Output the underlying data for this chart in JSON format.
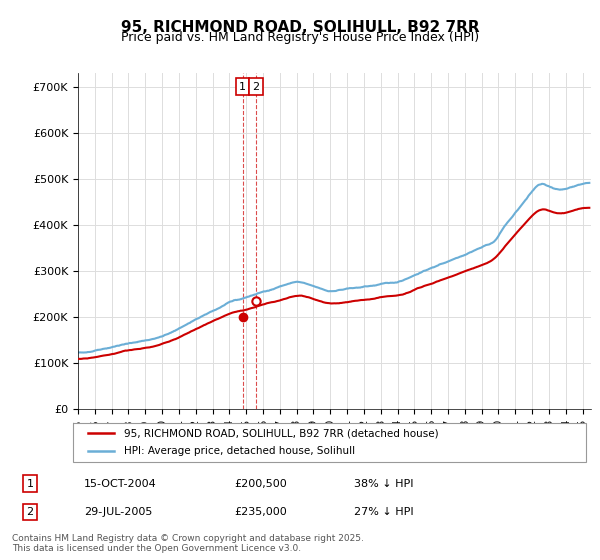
{
  "title": "95, RICHMOND ROAD, SOLIHULL, B92 7RR",
  "subtitle": "Price paid vs. HM Land Registry's House Price Index (HPI)",
  "ylabel_ticks": [
    "£0",
    "£100K",
    "£200K",
    "£300K",
    "£400K",
    "£500K",
    "£600K",
    "£700K"
  ],
  "ytick_values": [
    0,
    100000,
    200000,
    300000,
    400000,
    500000,
    600000,
    700000
  ],
  "ylim": [
    0,
    730000
  ],
  "xlim_start": 1995.0,
  "xlim_end": 2025.5,
  "xtick_years": [
    1995,
    1996,
    1997,
    1998,
    1999,
    2000,
    2001,
    2002,
    2003,
    2004,
    2005,
    2006,
    2007,
    2008,
    2009,
    2010,
    2011,
    2012,
    2013,
    2014,
    2015,
    2016,
    2017,
    2018,
    2019,
    2020,
    2021,
    2022,
    2023,
    2024,
    2025
  ],
  "legend_label_red": "95, RICHMOND ROAD, SOLIHULL, B92 7RR (detached house)",
  "legend_label_blue": "HPI: Average price, detached house, Solihull",
  "red_color": "#cc0000",
  "blue_color": "#6baed6",
  "annotation1_box": "1",
  "annotation1_date": "15-OCT-2004",
  "annotation1_price": "£200,500",
  "annotation1_hpi": "38% ↓ HPI",
  "annotation2_box": "2",
  "annotation2_date": "29-JUL-2005",
  "annotation2_price": "£235,000",
  "annotation2_hpi": "27% ↓ HPI",
  "marker1_x": 2004.79,
  "marker1_y": 200500,
  "marker2_x": 2005.58,
  "marker2_y": 235000,
  "vline1_x": 2004.79,
  "vline2_x": 2005.58,
  "footer": "Contains HM Land Registry data © Crown copyright and database right 2025.\nThis data is licensed under the Open Government Licence v3.0.",
  "background_color": "#ffffff",
  "grid_color": "#dddddd"
}
